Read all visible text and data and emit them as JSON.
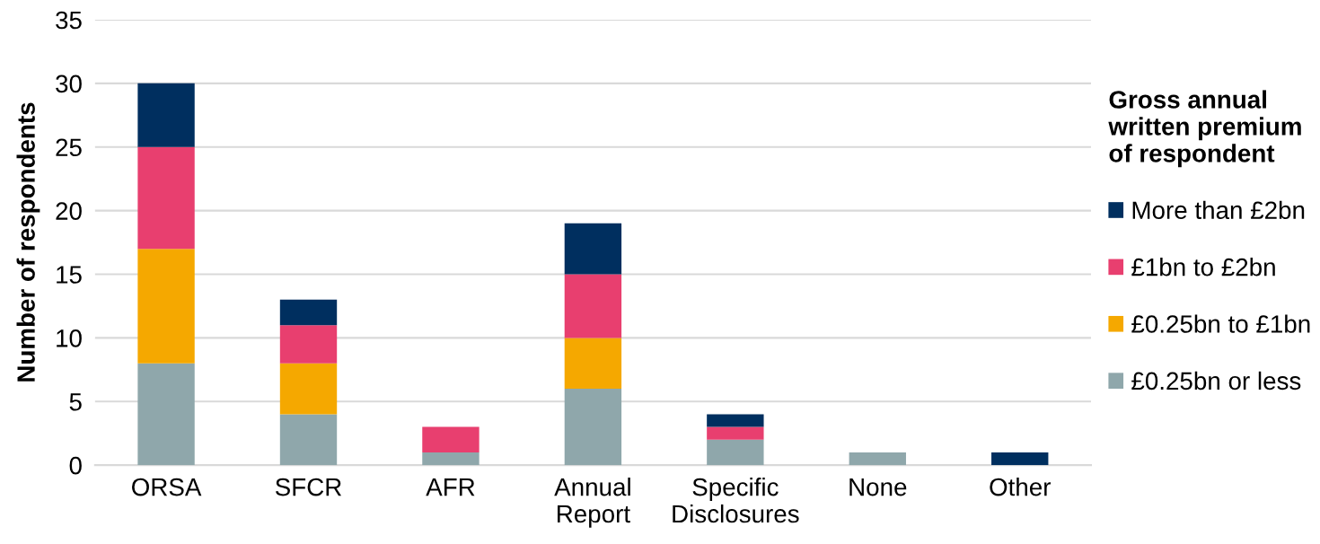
{
  "chart_data": {
    "type": "bar",
    "stacked": true,
    "categories": [
      "ORSA",
      "SFCR",
      "AFR",
      "Annual\nReport",
      "Specific\nDisclosures",
      "None",
      "Other"
    ],
    "ylabel": "Number of respondents",
    "legend_title": "Gross annual\nwritten premium\nof respondent",
    "series": [
      {
        "name": "£0.25bn or less",
        "color": "#8fa7ab",
        "values": [
          8,
          4,
          1,
          6,
          2,
          1,
          0
        ]
      },
      {
        "name": "£0.25bn to £1bn",
        "color": "#f5a800",
        "values": [
          9,
          4,
          0,
          4,
          0,
          0,
          0
        ]
      },
      {
        "name": "£1bn to £2bn",
        "color": "#e83f6f",
        "values": [
          8,
          3,
          2,
          5,
          1,
          0,
          0
        ]
      },
      {
        "name": "More than £2bn",
        "color": "#002f5f",
        "values": [
          5,
          2,
          0,
          4,
          1,
          0,
          1
        ]
      }
    ],
    "ylim": [
      0,
      35
    ],
    "yticks": [
      0,
      5,
      10,
      15,
      20,
      25,
      30,
      35
    ],
    "grid": "y",
    "legend": "right"
  }
}
